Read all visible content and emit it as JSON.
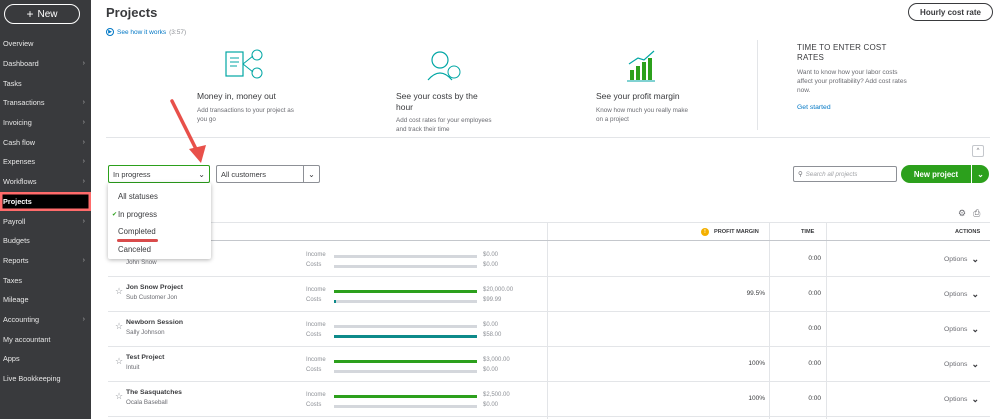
{
  "sidebar": {
    "new_label": "New",
    "items": [
      {
        "label": "Overview",
        "chevron": false
      },
      {
        "label": "Dashboard",
        "chevron": true
      },
      {
        "label": "Tasks",
        "chevron": false
      },
      {
        "label": "Transactions",
        "chevron": true
      },
      {
        "label": "Invoicing",
        "chevron": true
      },
      {
        "label": "Cash flow",
        "chevron": true
      },
      {
        "label": "Expenses",
        "chevron": true
      },
      {
        "label": "Workflows",
        "chevron": true
      },
      {
        "label": "Projects",
        "chevron": false
      },
      {
        "label": "Payroll",
        "chevron": true
      },
      {
        "label": "Budgets",
        "chevron": false
      },
      {
        "label": "Reports",
        "chevron": true
      },
      {
        "label": "Taxes",
        "chevron": false
      },
      {
        "label": "Mileage",
        "chevron": false
      },
      {
        "label": "Accounting",
        "chevron": true
      },
      {
        "label": "My accountant",
        "chevron": false
      },
      {
        "label": "Apps",
        "chevron": false
      },
      {
        "label": "Live Bookkeeping",
        "chevron": false
      }
    ],
    "active": "Projects"
  },
  "header": {
    "title": "Projects",
    "hourly_btn": "Hourly cost rate",
    "see_how": "See how it works",
    "duration": "(3:57)"
  },
  "promos": [
    {
      "title": "Money in, money out",
      "desc": "Add transactions to your project as you go"
    },
    {
      "title": "See your costs by the hour",
      "desc": "Add cost rates for your employees and track their time"
    },
    {
      "title": "See your profit margin",
      "desc": "Know how much you really make on a project"
    }
  ],
  "side_promo": {
    "title": "TIME TO ENTER COST RATES",
    "desc": "Want to know how your labor costs affect your profitability? Add cost rates now.",
    "link": "Get started"
  },
  "filters": {
    "status_value": "In progress",
    "customer_value": "All customers",
    "search_placeholder": "Search all projects",
    "new_project": "New project"
  },
  "status_options": [
    "All statuses",
    "In progress",
    "Completed",
    "Canceled"
  ],
  "table": {
    "headers": {
      "profit_margin": "PROFIT MARGIN",
      "time": "TIME",
      "actions": "ACTIONS"
    },
    "income_label": "Income",
    "costs_label": "Costs",
    "options_label": "Options",
    "rows": [
      {
        "name": "",
        "customer": "John Snow",
        "income": "$0.00",
        "costs": "$0.00",
        "margin": "",
        "time": "0:00",
        "income_fill": 0,
        "costs_fill": 0
      },
      {
        "name": "Jon Snow Project",
        "customer": "Sub Customer Jon",
        "income": "$20,000.00",
        "costs": "$99.99",
        "margin": "99.5%",
        "time": "0:00",
        "income_fill": 1.0,
        "costs_fill": 0.01
      },
      {
        "name": "Newborn Session",
        "customer": "Sally Johnson",
        "income": "$0.00",
        "costs": "$58.00",
        "margin": "",
        "time": "0:00",
        "income_fill": 0,
        "costs_fill": 1.0
      },
      {
        "name": "Test Project",
        "customer": "Intuit",
        "income": "$3,000.00",
        "costs": "$0.00",
        "margin": "100%",
        "time": "0:00",
        "income_fill": 1.0,
        "costs_fill": 0
      },
      {
        "name": "The Sasquatches",
        "customer": "Ocala Baseball",
        "income": "$2,500.00",
        "costs": "$0.00",
        "margin": "100%",
        "time": "0:00",
        "income_fill": 1.0,
        "costs_fill": 0
      }
    ]
  },
  "colors": {
    "green": "#2ca01c",
    "teal": "#0d8a8a",
    "blue": "#0077c5",
    "annotation": "#e8504a"
  }
}
